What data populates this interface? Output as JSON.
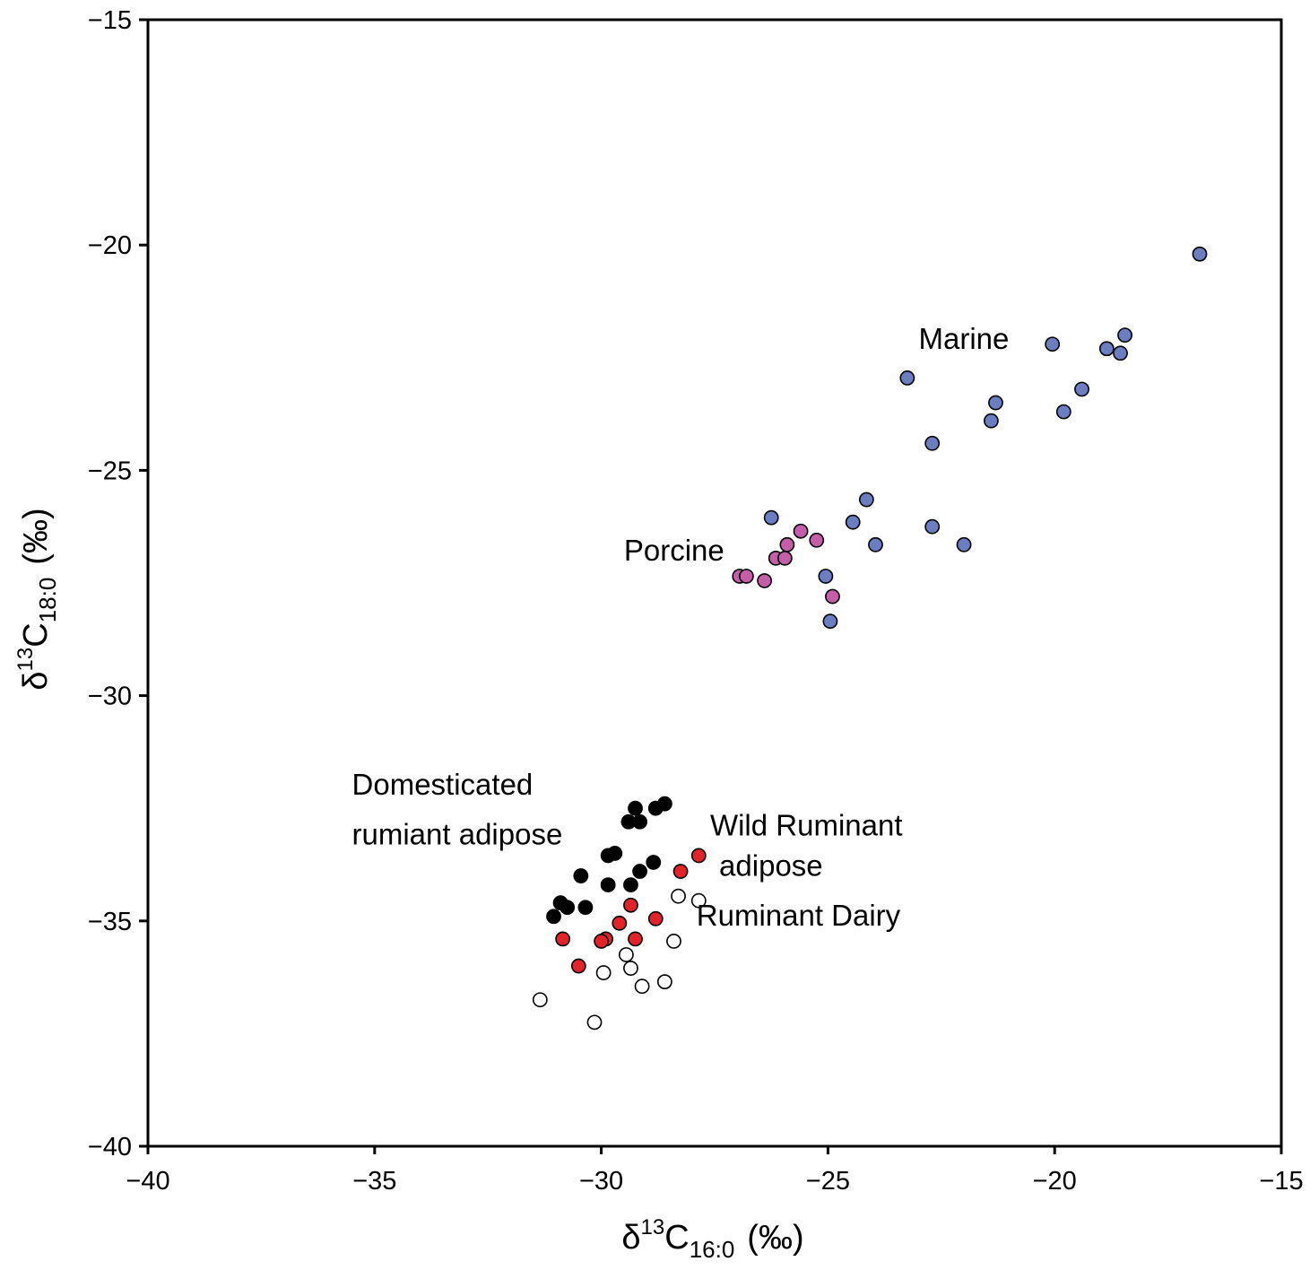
{
  "chart_data": {
    "type": "scatter",
    "title": "",
    "xlabel": {
      "prefix": "δ",
      "sup": "13",
      "main": "C",
      "sub": "16:0",
      "unit": "(‰)"
    },
    "ylabel": {
      "prefix": "δ",
      "sup": "13",
      "main": "C",
      "sub": "18:0",
      "unit": "(‰)"
    },
    "xlim": [
      -40,
      -15
    ],
    "ylim": [
      -40,
      -15
    ],
    "x_ticks": [
      -40,
      -35,
      -30,
      -25,
      -20,
      -15
    ],
    "x_tick_labels": [
      "−40",
      "−35",
      "−30",
      "−25",
      "−20",
      "−15"
    ],
    "y_ticks": [
      -15,
      -20,
      -25,
      -30,
      -35,
      -40
    ],
    "y_tick_labels": [
      "−15",
      "−20",
      "−25",
      "−30",
      "−35",
      "−40"
    ],
    "grid": false,
    "legend": "none",
    "annotations": [
      {
        "text": "Marine",
        "x": -23.0,
        "y": -22.3
      },
      {
        "text": "Porcine",
        "x": -29.5,
        "y": -27.0
      },
      {
        "text": "Domesticated",
        "x": -35.5,
        "y": -32.2
      },
      {
        "text": "rumiant adipose",
        "x": -35.5,
        "y": -33.3
      },
      {
        "text": "Wild Ruminant",
        "x": -27.6,
        "y": -33.1
      },
      {
        "text": "adipose",
        "x": -27.4,
        "y": -34.0
      },
      {
        "text": "Ruminant Dairy",
        "x": -27.9,
        "y": -35.1
      }
    ],
    "series": [
      {
        "name": "Marine",
        "color": "#6b7ec2",
        "points": [
          [
            -16.8,
            -20.2
          ],
          [
            -20.05,
            -22.2
          ],
          [
            -18.85,
            -22.3
          ],
          [
            -18.55,
            -22.4
          ],
          [
            -18.45,
            -22.0
          ],
          [
            -23.25,
            -22.95
          ],
          [
            -21.3,
            -23.5
          ],
          [
            -21.4,
            -23.9
          ],
          [
            -19.4,
            -23.2
          ],
          [
            -19.8,
            -23.7
          ],
          [
            -22.7,
            -24.4
          ],
          [
            -24.15,
            -25.65
          ],
          [
            -24.45,
            -26.15
          ],
          [
            -23.95,
            -26.65
          ],
          [
            -22.7,
            -26.25
          ],
          [
            -22.0,
            -26.65
          ],
          [
            -26.25,
            -26.05
          ],
          [
            -25.05,
            -27.35
          ],
          [
            -24.95,
            -28.35
          ]
        ]
      },
      {
        "name": "Porcine",
        "color": "#c45eaa",
        "points": [
          [
            -26.95,
            -27.35
          ],
          [
            -26.8,
            -27.35
          ],
          [
            -26.15,
            -26.95
          ],
          [
            -25.95,
            -26.95
          ],
          [
            -25.9,
            -26.65
          ],
          [
            -25.6,
            -26.35
          ],
          [
            -25.25,
            -26.55
          ],
          [
            -26.4,
            -27.45
          ],
          [
            -24.9,
            -27.8
          ]
        ]
      },
      {
        "name": "Domesticated rumiant adipose",
        "color": "#000000",
        "points": [
          [
            -28.6,
            -32.4
          ],
          [
            -28.8,
            -32.5
          ],
          [
            -29.25,
            -32.5
          ],
          [
            -29.4,
            -32.8
          ],
          [
            -29.15,
            -32.8
          ],
          [
            -29.7,
            -33.5
          ],
          [
            -29.85,
            -33.55
          ],
          [
            -29.15,
            -33.9
          ],
          [
            -28.85,
            -33.7
          ],
          [
            -30.45,
            -34.0
          ],
          [
            -29.85,
            -34.2
          ],
          [
            -29.35,
            -34.2
          ],
          [
            -30.9,
            -34.6
          ],
          [
            -30.75,
            -34.7
          ],
          [
            -30.35,
            -34.7
          ],
          [
            -31.05,
            -34.9
          ]
        ]
      },
      {
        "name": "Wild Ruminant adipose",
        "color": "#e3232a",
        "points": [
          [
            -27.85,
            -33.55
          ],
          [
            -28.25,
            -33.9
          ],
          [
            -29.35,
            -34.65
          ],
          [
            -28.8,
            -34.95
          ],
          [
            -29.6,
            -35.05
          ],
          [
            -30.85,
            -35.4
          ],
          [
            -29.9,
            -35.4
          ],
          [
            -30.0,
            -35.45
          ],
          [
            -29.25,
            -35.4
          ],
          [
            -30.5,
            -36.0
          ]
        ]
      },
      {
        "name": "Ruminant Dairy",
        "color": "#ffffff",
        "points": [
          [
            -28.3,
            -34.45
          ],
          [
            -27.85,
            -34.55
          ],
          [
            -28.4,
            -35.45
          ],
          [
            -29.45,
            -35.75
          ],
          [
            -29.35,
            -36.05
          ],
          [
            -29.95,
            -36.15
          ],
          [
            -28.6,
            -36.35
          ],
          [
            -29.1,
            -36.45
          ],
          [
            -31.35,
            -36.75
          ],
          [
            -30.15,
            -37.25
          ]
        ]
      }
    ]
  }
}
